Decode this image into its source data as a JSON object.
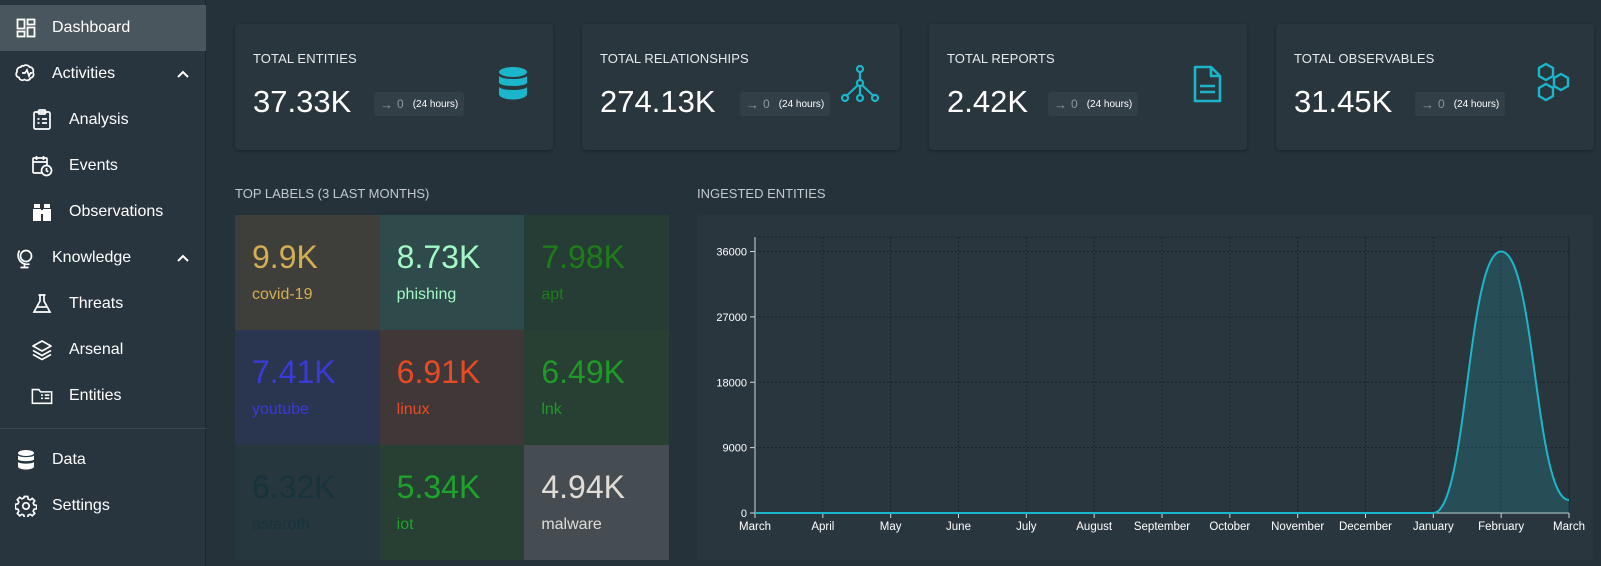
{
  "sidebar": {
    "items": [
      {
        "label": "Dashboard",
        "icon": "dashboard-icon"
      },
      {
        "label": "Activities",
        "icon": "activities-icon"
      },
      {
        "label": "Analysis",
        "icon": "analysis-icon"
      },
      {
        "label": "Events",
        "icon": "events-icon"
      },
      {
        "label": "Observations",
        "icon": "observations-icon"
      },
      {
        "label": "Knowledge",
        "icon": "knowledge-icon"
      },
      {
        "label": "Threats",
        "icon": "threats-icon"
      },
      {
        "label": "Arsenal",
        "icon": "arsenal-icon"
      },
      {
        "label": "Entities",
        "icon": "entities-icon"
      },
      {
        "label": "Data",
        "icon": "data-icon"
      },
      {
        "label": "Settings",
        "icon": "settings-icon"
      }
    ]
  },
  "cards": [
    {
      "title": "TOTAL ENTITIES",
      "value": "37.33K",
      "change": "0",
      "period": "(24 hours)",
      "icon": "database-icon"
    },
    {
      "title": "TOTAL RELATIONSHIPS",
      "value": "274.13K",
      "change": "0",
      "period": "(24 hours)",
      "icon": "graph-icon"
    },
    {
      "title": "TOTAL REPORTS",
      "value": "2.42K",
      "change": "0",
      "period": "(24 hours)",
      "icon": "report-icon"
    },
    {
      "title": "TOTAL OBSERVABLES",
      "value": "31.45K",
      "change": "0",
      "period": "(24 hours)",
      "icon": "hexagons-icon"
    }
  ],
  "top_labels": {
    "title": "TOP LABELS (3 LAST MONTHS)",
    "items": [
      {
        "value": "9.9K",
        "name": "covid-19",
        "color": "#d4ae52",
        "bg": "#3e3f3a"
      },
      {
        "value": "8.73K",
        "name": "phishing",
        "color": "#a4f8c8",
        "bg": "#2e4a4a"
      },
      {
        "value": "7.98K",
        "name": "apt",
        "color": "#1e7d18",
        "bg": "#253d35"
      },
      {
        "value": "7.41K",
        "name": "youtube",
        "color": "#3a3ad8",
        "bg": "#2a3650"
      },
      {
        "value": "6.91K",
        "name": "linux",
        "color": "#ea4a22",
        "bg": "#403838"
      },
      {
        "value": "6.49K",
        "name": "lnk",
        "color": "#1e9a26",
        "bg": "#283f33"
      },
      {
        "value": "6.32K",
        "name": "astaroth",
        "color": "#17343c",
        "bg": "#26373d"
      },
      {
        "value": "5.34K",
        "name": "iot",
        "color": "#1da42a",
        "bg": "#283f33"
      },
      {
        "value": "4.94K",
        "name": "malware",
        "color": "#e0dcd8",
        "bg": "#454d52"
      }
    ]
  },
  "ingested": {
    "title": "INGESTED ENTITIES"
  },
  "chart_data": {
    "type": "area",
    "x": [
      "March",
      "April",
      "May",
      "June",
      "July",
      "August",
      "September",
      "October",
      "November",
      "December",
      "January",
      "February",
      "March"
    ],
    "values": [
      0,
      0,
      0,
      0,
      0,
      0,
      0,
      0,
      0,
      0,
      0,
      36000,
      1800
    ],
    "yticks": [
      "0",
      "9000",
      "18000",
      "27000",
      "36000"
    ],
    "ylim": [
      0,
      38000
    ],
    "grid": true,
    "color": "#1bb6c9"
  }
}
